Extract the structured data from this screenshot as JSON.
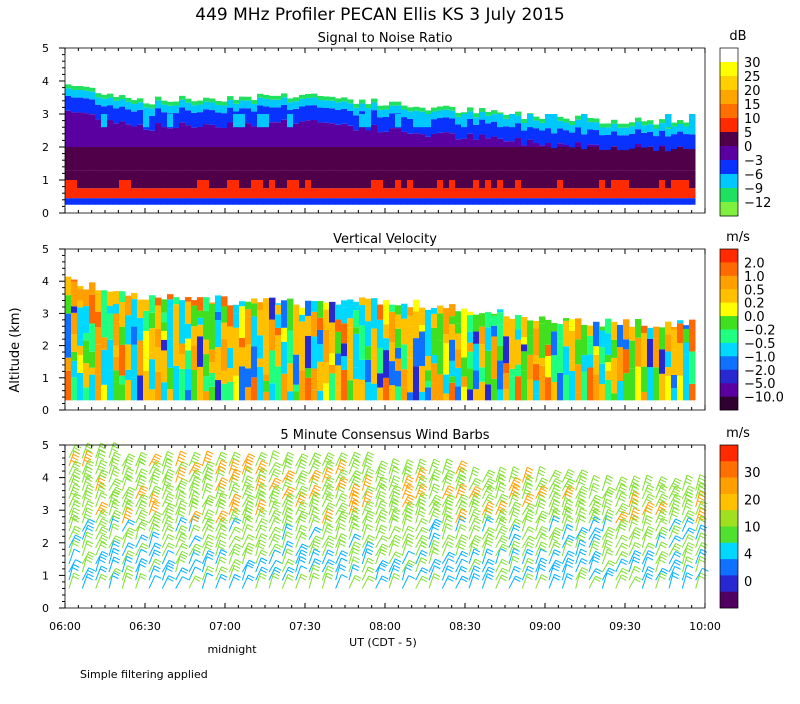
{
  "title": "449 MHz Profiler PECAN Ellis KS   3 July 2015",
  "ylabel": "Altitude (km)",
  "xlabel": "UT  (CDT - 5)",
  "midnight_label": "midnight",
  "footer_note": "Simple filtering applied",
  "x_ticks": [
    "06:00",
    "06:30",
    "07:00",
    "07:30",
    "08:00",
    "08:30",
    "09:00",
    "09:30",
    "10:00"
  ],
  "y_ticks": [
    "0",
    "1",
    "2",
    "3",
    "4",
    "5"
  ],
  "panels": [
    {
      "title": "Signal to Noise Ratio",
      "unit": "dB",
      "colorbar_labels": [
        "30",
        "25",
        "20",
        "15",
        "10",
        "5",
        "0",
        "−3",
        "−6",
        "−9",
        "−12"
      ],
      "colorbar_colors": [
        "#ffffff",
        "#ffff00",
        "#ffd000",
        "#ffa500",
        "#ff7000",
        "#ff2a00",
        "#500048",
        "#5a00a0",
        "#0a32ff",
        "#00c8ff",
        "#20e060",
        "#80f040"
      ]
    },
    {
      "title": "Vertical Velocity",
      "unit": "m/s",
      "colorbar_labels": [
        "2.0",
        "1.0",
        "0.5",
        "0.2",
        "0.0",
        "−0.2",
        "−0.5",
        "−1.0",
        "−2.0",
        "−5.0",
        "−10.0"
      ],
      "colorbar_colors": [
        "#ff2a00",
        "#ff6a00",
        "#ffa000",
        "#ffc000",
        "#ffff00",
        "#40e020",
        "#20ff80",
        "#00d8ff",
        "#1070ff",
        "#2828d0",
        "#5a00a0",
        "#300030"
      ]
    },
    {
      "title": "5 Minute Consensus Wind Barbs",
      "unit": "m/s",
      "colorbar_labels": [
        "30",
        "20",
        "10",
        "4",
        "0"
      ],
      "colorbar_colors": [
        "#ff2a00",
        "#ff7000",
        "#ffa000",
        "#ffc000",
        "#a0e020",
        "#50e030",
        "#00d8ff",
        "#1070ff",
        "#2828d0",
        "#500060"
      ]
    }
  ],
  "chart_data": {
    "type": "heatmap",
    "x_range": [
      "06:00",
      "10:00"
    ],
    "y_range_km": [
      0,
      5
    ],
    "snr_layers_dB": [
      {
        "alt_km": [
          0.3,
          0.7
        ],
        "value": 0,
        "note_values": [
          5
        ]
      },
      {
        "alt_km": [
          0.7,
          1.3
        ],
        "value": 5
      },
      {
        "alt_km": [
          1.3,
          2.0
        ],
        "value": 0
      },
      {
        "alt_km": [
          2.0,
          2.7
        ],
        "value": -3
      },
      {
        "alt_km": [
          2.7,
          3.3
        ],
        "value": -6
      },
      {
        "alt_km": [
          3.3,
          4.0
        ],
        "value": -9
      }
    ],
    "snr_top_km": [
      {
        "x": "06:00",
        "y": 3.9
      },
      {
        "x": "06:30",
        "y": 3.4
      },
      {
        "x": "07:00",
        "y": 3.5
      },
      {
        "x": "07:30",
        "y": 3.6
      },
      {
        "x": "08:00",
        "y": 3.3
      },
      {
        "x": "08:30",
        "y": 3.1
      },
      {
        "x": "09:00",
        "y": 2.9
      },
      {
        "x": "09:30",
        "y": 2.8
      },
      {
        "x": "09:55",
        "y": 2.75
      }
    ],
    "vv_top_km": [
      {
        "x": "06:00",
        "y": 4.0
      },
      {
        "x": "06:30",
        "y": 3.5
      },
      {
        "x": "07:00",
        "y": 3.4
      },
      {
        "x": "07:30",
        "y": 3.3
      },
      {
        "x": "08:00",
        "y": 3.4
      },
      {
        "x": "08:30",
        "y": 3.1
      },
      {
        "x": "09:00",
        "y": 2.8
      },
      {
        "x": "09:30",
        "y": 2.7
      },
      {
        "x": "09:55",
        "y": 2.7
      }
    ],
    "wind_speed_profile_ms": [
      {
        "alt_km": 1.0,
        "speed": 8
      },
      {
        "alt_km": 2.0,
        "speed": 10
      },
      {
        "alt_km": 3.0,
        "speed": 14
      },
      {
        "alt_km": 4.0,
        "speed": 18
      }
    ],
    "wind_barb_interval_min": 5
  }
}
